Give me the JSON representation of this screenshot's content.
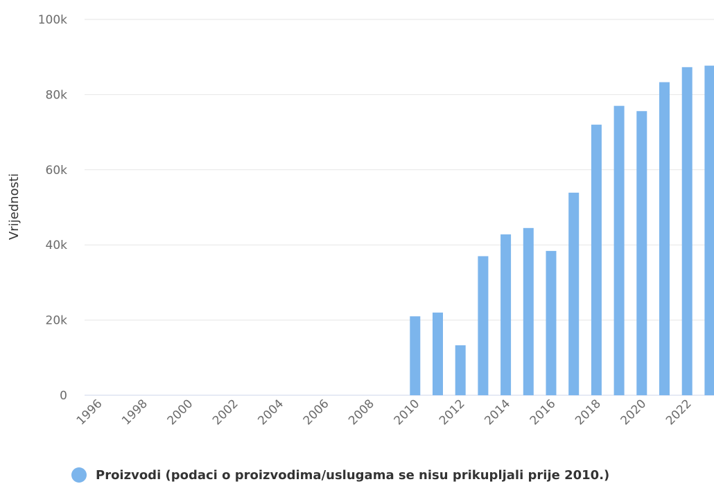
{
  "colors": {
    "bar": "#7cb5ec",
    "grid": "#e6e6e6",
    "axis_line": "#ccd6eb",
    "tick_text": "#6b6b6b",
    "title_text": "#333333"
  },
  "chart_data": {
    "type": "bar",
    "ylabel": "Vrijednosti",
    "ylim": [
      0,
      100000
    ],
    "yticks": [
      0,
      20000,
      40000,
      60000,
      80000,
      100000
    ],
    "ytick_labels": [
      "0",
      "20k",
      "40k",
      "60k",
      "80k",
      "100k"
    ],
    "grid": true,
    "legend_position": "bottom-left",
    "categories": [
      "1996",
      "1997",
      "1998",
      "1999",
      "2000",
      "2001",
      "2002",
      "2003",
      "2004",
      "2005",
      "2006",
      "2007",
      "2008",
      "2009",
      "2010",
      "2011",
      "2012",
      "2013",
      "2014",
      "2015",
      "2016",
      "2017",
      "2018",
      "2019",
      "2020",
      "2021",
      "2022",
      "2023"
    ],
    "xtick_labels": [
      "1996",
      "1998",
      "2000",
      "2002",
      "2004",
      "2006",
      "2008",
      "2010",
      "2012",
      "2014",
      "2016",
      "2018",
      "2020",
      "2022"
    ],
    "series": [
      {
        "name": "Proizvodi (podaci o proizvodima/uslugama se nisu prikupljali prije 2010.)",
        "values": [
          null,
          null,
          null,
          null,
          null,
          null,
          null,
          null,
          null,
          null,
          null,
          null,
          null,
          null,
          21000,
          22000,
          13300,
          37000,
          42800,
          44500,
          38400,
          53900,
          72000,
          77000,
          75600,
          83300,
          87300,
          87700
        ]
      }
    ]
  }
}
